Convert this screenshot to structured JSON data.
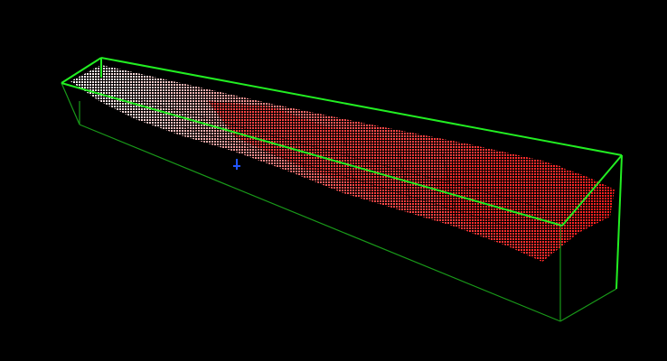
{
  "viewer": {
    "background_color": "#000000",
    "bounding_box_color": "#22ee22",
    "point_color_near": "#ffffff",
    "point_color_far": "#ff2020",
    "axis_icon": "axes-gizmo-icon"
  }
}
